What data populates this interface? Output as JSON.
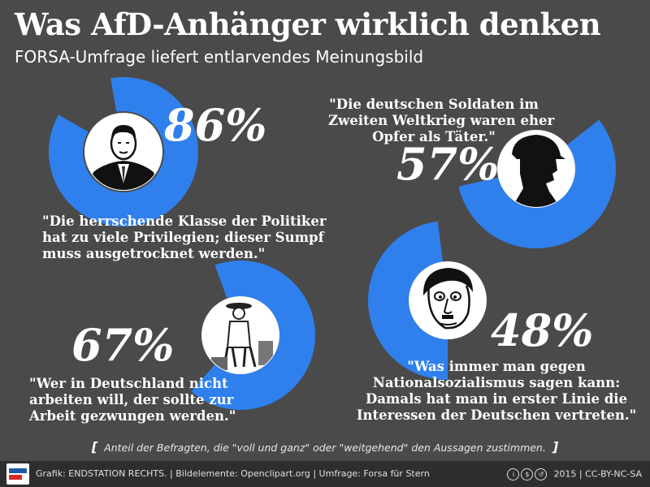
{
  "header": {
    "title": "Was AfD-Anhänger wirklich denken",
    "subtitle": "FORSA-Umfrage liefert entlarvendes Meinungsbild"
  },
  "colors": {
    "accent": "#2f80ed",
    "background": "#4a4a4a",
    "footer": "#2e2e2e"
  },
  "chart_data": {
    "type": "donut",
    "series": [
      {
        "value": 86,
        "label": "86%",
        "icon": "politician-portrait-icon",
        "quote": [
          "\"Die herrschende Klasse der Politiker",
          "hat zu viele Privilegien; dieser Sumpf",
          "muss ausgetrocknet werden.\""
        ]
      },
      {
        "value": 57,
        "label": "57%",
        "icon": "soldier-silhouette-icon",
        "quote": [
          "\"Die deutschen Soldaten im",
          "Zweiten Weltkrieg waren eher",
          "Opfer als Täter.\""
        ]
      },
      {
        "value": 67,
        "label": "67%",
        "icon": "laborer-portrait-icon",
        "quote": [
          "\"Wer in Deutschland nicht",
          "arbeiten will, der sollte zur",
          "Arbeit gezwungen werden.\""
        ]
      },
      {
        "value": 48,
        "label": "48%",
        "icon": "hitler-caricature-icon",
        "quote": [
          "\"Was immer man gegen",
          "Nationalsozialismus sagen kann:",
          "Damals hat man in erster Linie die",
          "Interessen der Deutschen vertreten.\""
        ]
      }
    ]
  },
  "footnote": {
    "open": "[",
    "text": "Anteil der Befragten, die \"voll und ganz\" oder \"weitgehend\" den Aussagen zustimmen.",
    "close": "]"
  },
  "footer": {
    "credits": "Grafik: ENDSTATION RECHTS.  | Bildelemente: Openclipart.org  | Umfrage: Forsa für Stern",
    "license": "2015 | CC-BY-NC-SA",
    "logo_name": "endstation-rechts-logo"
  }
}
